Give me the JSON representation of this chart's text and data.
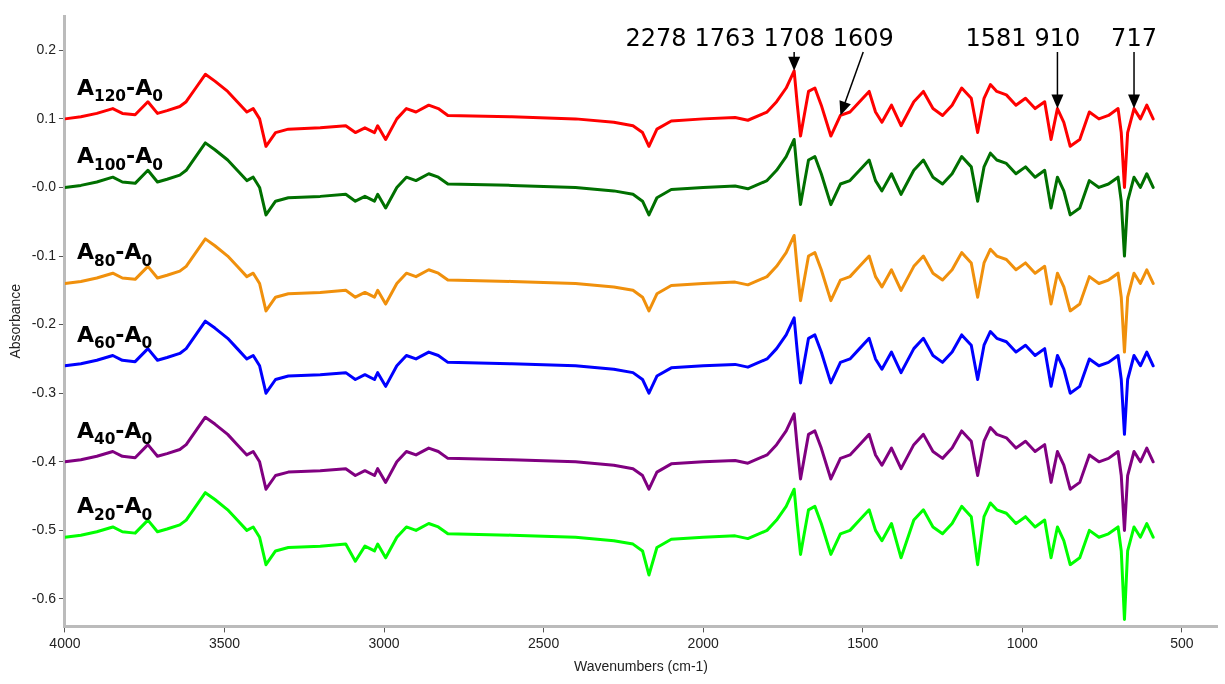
{
  "chart_data": {
    "type": "line",
    "xlabel": "Wavenumbers (cm-1)",
    "ylabel": "Absorbance",
    "xlim": [
      4000,
      390
    ],
    "xticks": [
      4000,
      3500,
      3000,
      2500,
      2000,
      1500,
      1000,
      500
    ],
    "ylim": [
      -0.64,
      0.25
    ],
    "yticks": [
      0.2,
      0.1,
      {
        "value": 0,
        "label": "-0.0"
      },
      -0.1,
      -0.2,
      -0.3,
      -0.4,
      -0.5,
      -0.6
    ],
    "marker": "none",
    "line_style": "solid",
    "x": [
      4000,
      3950,
      3900,
      3850,
      3820,
      3780,
      3740,
      3710,
      3680,
      3640,
      3620,
      3590,
      3560,
      3530,
      3490,
      3460,
      3430,
      3410,
      3390,
      3370,
      3340,
      3300,
      3200,
      3120,
      3090,
      3060,
      3030,
      3020,
      2995,
      2960,
      2930,
      2900,
      2860,
      2830,
      2800,
      2600,
      2400,
      2280,
      2220,
      2190,
      2170,
      2145,
      2100,
      2000,
      1900,
      1860,
      1800,
      1770,
      1740,
      1715,
      1705,
      1695,
      1670,
      1650,
      1630,
      1600,
      1570,
      1540,
      1510,
      1480,
      1460,
      1440,
      1410,
      1380,
      1340,
      1310,
      1280,
      1250,
      1220,
      1190,
      1160,
      1140,
      1120,
      1100,
      1080,
      1050,
      1020,
      990,
      960,
      930,
      910,
      890,
      870,
      850,
      820,
      790,
      760,
      730,
      700,
      690,
      680,
      670,
      650,
      630,
      610,
      590
    ],
    "series": [
      {
        "name": "A$_{120}$-A$_{0}$",
        "color": "#ff0000",
        "values": [
          0.1,
          0.103,
          0.108,
          0.115,
          0.108,
          0.106,
          0.125,
          0.108,
          0.112,
          0.118,
          0.125,
          0.145,
          0.165,
          0.155,
          0.14,
          0.125,
          0.11,
          0.115,
          0.1,
          0.06,
          0.08,
          0.085,
          0.087,
          0.09,
          0.08,
          0.087,
          0.08,
          0.09,
          0.07,
          0.1,
          0.115,
          0.11,
          0.12,
          0.115,
          0.105,
          0.103,
          0.1,
          0.095,
          0.09,
          0.08,
          0.06,
          0.085,
          0.097,
          0.1,
          0.102,
          0.098,
          0.11,
          0.125,
          0.145,
          0.17,
          0.12,
          0.075,
          0.14,
          0.145,
          0.12,
          0.075,
          0.105,
          0.11,
          0.125,
          0.14,
          0.11,
          0.095,
          0.12,
          0.09,
          0.125,
          0.14,
          0.115,
          0.105,
          0.12,
          0.145,
          0.13,
          0.08,
          0.13,
          0.15,
          0.14,
          0.135,
          0.12,
          0.13,
          0.115,
          0.125,
          0.07,
          0.115,
          0.095,
          0.06,
          0.07,
          0.11,
          0.1,
          0.105,
          0.115,
          0.08,
          0.0,
          0.08,
          0.115,
          0.1,
          0.12,
          0.1
        ]
      },
      {
        "name": "A$_{100}$-A$_{0}$",
        "color": "#007000",
        "values": [
          0,
          0.003,
          0.008,
          0.015,
          0.008,
          0.006,
          0.025,
          0.008,
          0.012,
          0.018,
          0.025,
          0.045,
          0.065,
          0.055,
          0.04,
          0.025,
          0.01,
          0.015,
          0,
          -0.04,
          -0.02,
          -0.015,
          -0.013,
          -0.01,
          -0.02,
          -0.013,
          -0.02,
          -0.01,
          -0.03,
          0,
          0.015,
          0.01,
          0.02,
          0.015,
          0.005,
          0.003,
          0,
          -0.005,
          -0.01,
          -0.02,
          -0.04,
          -0.015,
          -0.003,
          0,
          0.002,
          -0.002,
          0.01,
          0.025,
          0.045,
          0.07,
          0.02,
          -0.025,
          0.04,
          0.045,
          0.02,
          -0.025,
          0.005,
          0.01,
          0.025,
          0.04,
          0.01,
          -0.005,
          0.02,
          -0.01,
          0.025,
          0.04,
          0.015,
          0.005,
          0.02,
          0.045,
          0.03,
          -0.02,
          0.03,
          0.05,
          0.04,
          0.035,
          0.02,
          0.03,
          0.015,
          0.025,
          -0.03,
          0.015,
          -0.005,
          -0.04,
          -0.03,
          0.01,
          0,
          0.005,
          0.015,
          -0.02,
          -0.1,
          -0.02,
          0.015,
          0,
          0.02,
          0
        ]
      },
      {
        "name": "A$_{80}$-A$_{0}$",
        "color": "#f0900c",
        "values": [
          -0.14,
          -0.137,
          -0.132,
          -0.125,
          -0.132,
          -0.134,
          -0.115,
          -0.132,
          -0.128,
          -0.122,
          -0.115,
          -0.095,
          -0.075,
          -0.085,
          -0.1,
          -0.115,
          -0.13,
          -0.125,
          -0.14,
          -0.18,
          -0.16,
          -0.155,
          -0.153,
          -0.15,
          -0.16,
          -0.153,
          -0.16,
          -0.15,
          -0.17,
          -0.14,
          -0.125,
          -0.13,
          -0.12,
          -0.125,
          -0.135,
          -0.137,
          -0.14,
          -0.145,
          -0.15,
          -0.16,
          -0.18,
          -0.155,
          -0.143,
          -0.14,
          -0.138,
          -0.142,
          -0.13,
          -0.115,
          -0.095,
          -0.07,
          -0.12,
          -0.165,
          -0.1,
          -0.095,
          -0.12,
          -0.165,
          -0.135,
          -0.13,
          -0.115,
          -0.1,
          -0.13,
          -0.145,
          -0.12,
          -0.15,
          -0.115,
          -0.1,
          -0.125,
          -0.135,
          -0.12,
          -0.095,
          -0.11,
          -0.16,
          -0.11,
          -0.09,
          -0.1,
          -0.105,
          -0.12,
          -0.11,
          -0.125,
          -0.115,
          -0.17,
          -0.125,
          -0.145,
          -0.18,
          -0.17,
          -0.13,
          -0.14,
          -0.135,
          -0.125,
          -0.16,
          -0.24,
          -0.16,
          -0.125,
          -0.14,
          -0.12,
          -0.14
        ]
      },
      {
        "name": "A$_{60}$-A$_{0}$",
        "color": "#0000ff",
        "values": [
          -0.26,
          -0.257,
          -0.252,
          -0.245,
          -0.252,
          -0.254,
          -0.235,
          -0.252,
          -0.248,
          -0.242,
          -0.235,
          -0.215,
          -0.195,
          -0.205,
          -0.22,
          -0.235,
          -0.25,
          -0.245,
          -0.26,
          -0.3,
          -0.28,
          -0.275,
          -0.273,
          -0.27,
          -0.28,
          -0.273,
          -0.28,
          -0.27,
          -0.29,
          -0.26,
          -0.245,
          -0.25,
          -0.24,
          -0.245,
          -0.255,
          -0.257,
          -0.26,
          -0.265,
          -0.27,
          -0.28,
          -0.3,
          -0.275,
          -0.263,
          -0.26,
          -0.258,
          -0.262,
          -0.25,
          -0.235,
          -0.215,
          -0.19,
          -0.24,
          -0.285,
          -0.22,
          -0.215,
          -0.24,
          -0.285,
          -0.255,
          -0.25,
          -0.235,
          -0.22,
          -0.25,
          -0.265,
          -0.24,
          -0.27,
          -0.235,
          -0.22,
          -0.245,
          -0.255,
          -0.24,
          -0.215,
          -0.23,
          -0.28,
          -0.23,
          -0.21,
          -0.22,
          -0.225,
          -0.24,
          -0.23,
          -0.245,
          -0.235,
          -0.29,
          -0.245,
          -0.265,
          -0.3,
          -0.29,
          -0.25,
          -0.26,
          -0.255,
          -0.245,
          -0.28,
          -0.36,
          -0.28,
          -0.245,
          -0.26,
          -0.24,
          -0.26
        ]
      },
      {
        "name": "A$_{40}$-A$_{0}$",
        "color": "#800080",
        "values": [
          -0.4,
          -0.397,
          -0.392,
          -0.385,
          -0.392,
          -0.394,
          -0.375,
          -0.392,
          -0.388,
          -0.382,
          -0.375,
          -0.355,
          -0.335,
          -0.345,
          -0.36,
          -0.375,
          -0.39,
          -0.385,
          -0.4,
          -0.44,
          -0.42,
          -0.415,
          -0.413,
          -0.41,
          -0.42,
          -0.413,
          -0.42,
          -0.41,
          -0.43,
          -0.4,
          -0.385,
          -0.39,
          -0.38,
          -0.385,
          -0.395,
          -0.397,
          -0.4,
          -0.405,
          -0.41,
          -0.42,
          -0.44,
          -0.415,
          -0.403,
          -0.4,
          -0.398,
          -0.402,
          -0.39,
          -0.375,
          -0.355,
          -0.33,
          -0.38,
          -0.425,
          -0.36,
          -0.355,
          -0.38,
          -0.425,
          -0.395,
          -0.39,
          -0.375,
          -0.36,
          -0.39,
          -0.405,
          -0.38,
          -0.41,
          -0.375,
          -0.36,
          -0.385,
          -0.395,
          -0.38,
          -0.355,
          -0.37,
          -0.42,
          -0.37,
          -0.35,
          -0.36,
          -0.365,
          -0.38,
          -0.37,
          -0.385,
          -0.375,
          -0.43,
          -0.385,
          -0.405,
          -0.44,
          -0.43,
          -0.39,
          -0.4,
          -0.395,
          -0.385,
          -0.42,
          -0.5,
          -0.42,
          -0.385,
          -0.4,
          -0.38,
          -0.4
        ]
      },
      {
        "name": "A$_{20}$-A$_{0}$",
        "color": "#00ff00",
        "values": [
          -0.51,
          -0.507,
          -0.502,
          -0.495,
          -0.502,
          -0.504,
          -0.485,
          -0.502,
          -0.498,
          -0.492,
          -0.485,
          -0.465,
          -0.445,
          -0.455,
          -0.47,
          -0.485,
          -0.5,
          -0.495,
          -0.51,
          -0.55,
          -0.53,
          -0.525,
          -0.523,
          -0.52,
          -0.545,
          -0.523,
          -0.53,
          -0.52,
          -0.54,
          -0.51,
          -0.495,
          -0.5,
          -0.49,
          -0.495,
          -0.505,
          -0.507,
          -0.51,
          -0.515,
          -0.52,
          -0.53,
          -0.565,
          -0.525,
          -0.513,
          -0.51,
          -0.508,
          -0.512,
          -0.5,
          -0.485,
          -0.465,
          -0.44,
          -0.49,
          -0.535,
          -0.47,
          -0.465,
          -0.49,
          -0.535,
          -0.505,
          -0.5,
          -0.485,
          -0.47,
          -0.5,
          -0.515,
          -0.49,
          -0.54,
          -0.485,
          -0.47,
          -0.495,
          -0.505,
          -0.49,
          -0.465,
          -0.48,
          -0.55,
          -0.48,
          -0.46,
          -0.47,
          -0.475,
          -0.49,
          -0.48,
          -0.495,
          -0.485,
          -0.54,
          -0.495,
          -0.515,
          -0.55,
          -0.54,
          -0.5,
          -0.51,
          -0.505,
          -0.495,
          -0.53,
          -0.63,
          -0.53,
          -0.495,
          -0.51,
          -0.49,
          -0.51
        ]
      }
    ],
    "annotations": [
      "2278",
      "1763",
      {
        "text": "1708",
        "x": 1715,
        "y": 0.17
      },
      {
        "text": "1609",
        "x": 1570,
        "y": 0.105
      },
      "1581",
      {
        "text": "910",
        "x": 890,
        "y": 0.115
      },
      {
        "text": "717",
        "x": 650,
        "y": 0.115
      }
    ]
  }
}
